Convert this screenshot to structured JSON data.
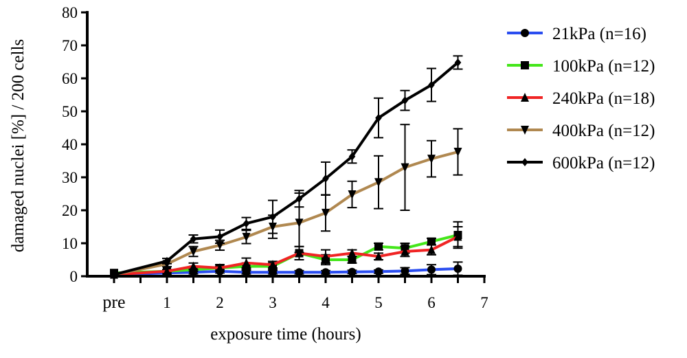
{
  "chart_data": {
    "type": "line",
    "title": "",
    "xlabel": "exposure time (hours)",
    "ylabel": "damaged nuclei [%] / 200 cells",
    "xlim": [
      0,
      7
    ],
    "ylim": [
      0,
      80
    ],
    "x_tick_labels": [
      {
        "x": 0,
        "label": "pre"
      },
      {
        "x": 1,
        "label": "1"
      },
      {
        "x": 2,
        "label": "2"
      },
      {
        "x": 3,
        "label": "3"
      },
      {
        "x": 4,
        "label": "4"
      },
      {
        "x": 5,
        "label": "5"
      },
      {
        "x": 6,
        "label": "6"
      },
      {
        "x": 7,
        "label": "7"
      }
    ],
    "y_tick_labels": [
      "0",
      "10",
      "20",
      "30",
      "40",
      "50",
      "60",
      "70",
      "80"
    ],
    "grid": false,
    "legend_position": "right",
    "x": [
      0,
      1,
      1.5,
      2,
      2.5,
      3,
      3.5,
      4,
      4.5,
      5,
      5.5,
      6,
      6.5
    ],
    "series": [
      {
        "name": "21kPa (n=16)",
        "color": "#2a4df0",
        "marker": "circle",
        "values": [
          0.5,
          1,
          1.2,
          1.5,
          1.2,
          1.2,
          1.2,
          1.2,
          1.3,
          1.4,
          1.6,
          2,
          2.3
        ],
        "errors": [
          0,
          0.5,
          0.5,
          0.5,
          0.5,
          0.5,
          0.5,
          0.5,
          0.5,
          0.5,
          1,
          1.5,
          2
        ]
      },
      {
        "name": "100kPa (n=12)",
        "color": "#44e61a",
        "marker": "square",
        "values": [
          1,
          1.5,
          2,
          2.5,
          3,
          3,
          7,
          5,
          5,
          9,
          8.5,
          10.5,
          12.5
        ],
        "errors": [
          0,
          0.5,
          0.5,
          0.5,
          1,
          1,
          2,
          1.5,
          1,
          1,
          1.5,
          1,
          4
        ]
      },
      {
        "name": "240kPa (n=18)",
        "color": "#f02424",
        "marker": "triangle-up",
        "values": [
          0.5,
          1.5,
          3,
          2.5,
          4,
          3.5,
          7,
          6,
          7,
          6,
          7.5,
          8,
          12
        ],
        "errors": [
          0,
          0.5,
          1,
          1,
          1.5,
          1,
          2,
          2,
          1,
          1,
          1.5,
          1.5,
          3
        ]
      },
      {
        "name": "400kPa (n=12)",
        "color": "#b08850",
        "marker": "triangle-down",
        "values": [
          0.5,
          3.7,
          7.5,
          9.4,
          11.9,
          15,
          16.2,
          19.2,
          24.8,
          28.5,
          33,
          35.6,
          37.7
        ],
        "errors": [
          0,
          0.8,
          1.5,
          1.5,
          2,
          3.5,
          9,
          5.5,
          4,
          8,
          13,
          5.5,
          7
        ]
      },
      {
        "name": "600kPa (n=12)",
        "color": "#000000",
        "marker": "diamond",
        "values": [
          0.5,
          4.6,
          11.3,
          12,
          16,
          18,
          23.5,
          29.6,
          36.3,
          48,
          53.3,
          58,
          64.8
        ],
        "errors": [
          0,
          0.8,
          1.2,
          2,
          1.8,
          5,
          2.5,
          5,
          2,
          6,
          3,
          5,
          2
        ]
      }
    ]
  }
}
